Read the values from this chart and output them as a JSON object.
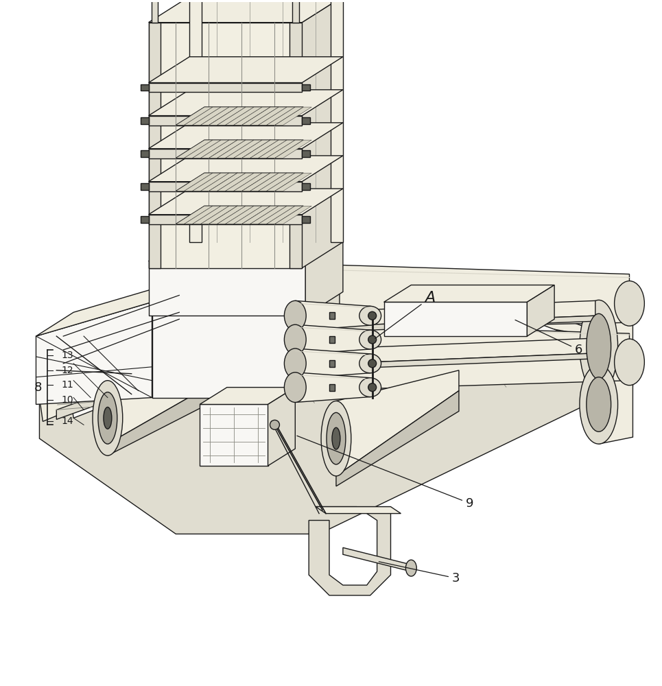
{
  "background_color": "#ffffff",
  "line_color": "#1a1a1a",
  "line_width": 1.0,
  "face_light": "#f0ede0",
  "face_mid": "#e0ddd0",
  "face_dark": "#c8c5b8",
  "face_white": "#f8f7f4",
  "face_gray": "#b8b5a8",
  "figsize": [
    9.65,
    10.0
  ],
  "dpi": 100
}
